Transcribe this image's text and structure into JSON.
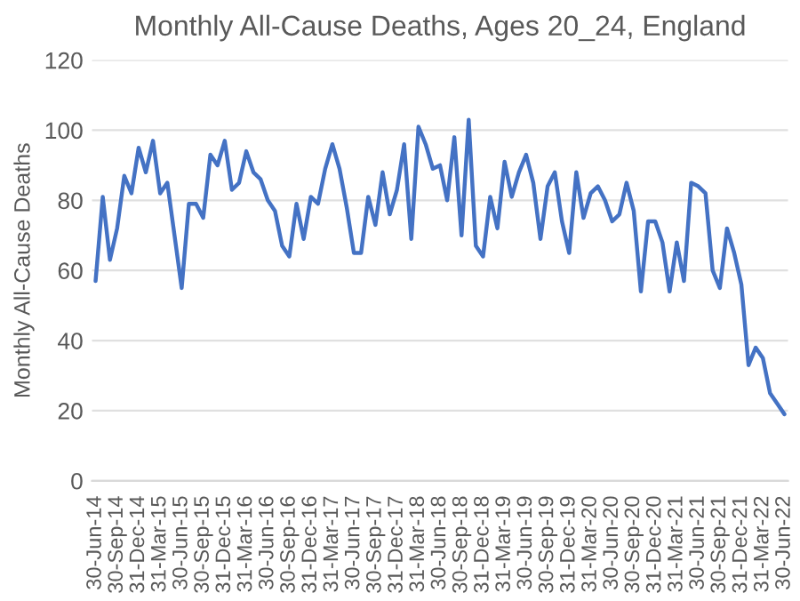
{
  "chart_data": {
    "type": "line",
    "title": "Monthly All-Cause Deaths, Ages 20_24, England",
    "ylabel": "Monthly All-Cause Deaths",
    "categories": [
      "30-Jun-14",
      null,
      null,
      "30-Sep-14",
      null,
      null,
      "31-Dec-14",
      null,
      null,
      "31-Mar-15",
      null,
      null,
      "30-Jun-15",
      null,
      null,
      "30-Sep-15",
      null,
      null,
      "31-Dec-15",
      null,
      null,
      "31-Mar-16",
      null,
      null,
      "30-Jun-16",
      null,
      null,
      "30-Sep-16",
      null,
      null,
      "31-Dec-16",
      null,
      null,
      "31-Mar-17",
      null,
      null,
      "30-Jun-17",
      null,
      null,
      "30-Sep-17",
      null,
      null,
      "31-Dec-17",
      null,
      null,
      "31-Mar-18",
      null,
      null,
      "30-Jun-18",
      null,
      null,
      "30-Sep-18",
      null,
      null,
      "31-Dec-18",
      null,
      null,
      "31-Mar-19",
      null,
      null,
      "30-Jun-19",
      null,
      null,
      "30-Sep-19",
      null,
      null,
      "31-Dec-19",
      null,
      null,
      "31-Mar-20",
      null,
      null,
      "30-Jun-20",
      null,
      null,
      "30-Sep-20",
      null,
      null,
      "31-Dec-20",
      null,
      null,
      "31-Mar-21",
      null,
      null,
      "30-Jun-21",
      null,
      null,
      "30-Sep-21",
      null,
      null,
      "31-Dec-21",
      null,
      null,
      "31-Mar-22",
      null,
      null,
      "30-Jun-22"
    ],
    "series": [
      {
        "color": "#4472c4",
        "values": [
          57,
          81,
          63,
          72,
          87,
          82,
          95,
          88,
          97,
          82,
          85,
          70,
          55,
          79,
          79,
          75,
          93,
          90,
          97,
          83,
          85,
          94,
          88,
          86,
          80,
          77,
          67,
          64,
          79,
          69,
          81,
          79,
          89,
          96,
          89,
          78,
          65,
          65,
          81,
          73,
          88,
          76,
          83,
          96,
          69,
          101,
          96,
          89,
          90,
          80,
          98,
          70,
          103,
          67,
          64,
          81,
          72,
          91,
          81,
          88,
          93,
          85,
          69,
          84,
          88,
          74,
          65,
          88,
          75,
          82,
          84,
          80,
          74,
          76,
          85,
          77,
          54,
          74,
          74,
          68,
          54,
          68,
          57,
          85,
          84,
          82,
          60,
          55,
          72,
          65,
          56,
          33,
          38,
          35,
          25,
          22,
          19
        ]
      }
    ],
    "ylim": [
      0,
      120
    ],
    "yticks": [
      0,
      20,
      40,
      60,
      80,
      100,
      120
    ],
    "grid": "y",
    "marker": "none",
    "line_style": "solid"
  }
}
